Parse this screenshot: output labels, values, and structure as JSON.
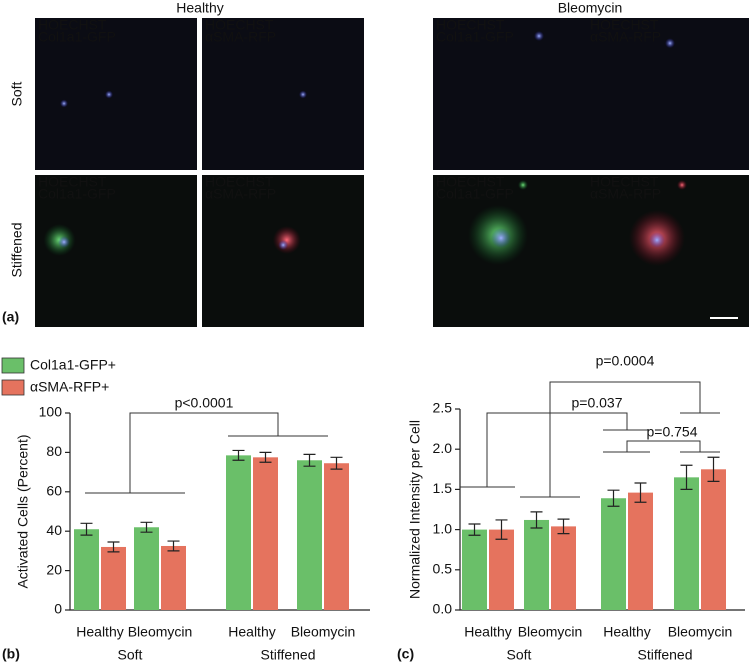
{
  "figure": {
    "panel_label": "(a)",
    "columns": [
      "Healthy",
      "Bleomycin"
    ],
    "rows": [
      "Soft",
      "Stiffened"
    ],
    "nucleus_stain": "HOECHST",
    "stains": [
      "Col1a1-GFP",
      "αSMA-RFP"
    ]
  },
  "chart_data": [
    {
      "type": "bar",
      "panel_label": "(b)",
      "ylabel": "Activated Cells (Percent)",
      "categories": [
        "Healthy",
        "Bleomycin",
        "Healthy",
        "Bleomycin"
      ],
      "group_labels": [
        "Soft",
        "Stiffened"
      ],
      "series": [
        {
          "name": "Col1a1-GFP+",
          "color": "#6abf69",
          "values": [
            41,
            42,
            78.5,
            76
          ],
          "errors": [
            3,
            2.5,
            2.5,
            3
          ]
        },
        {
          "name": "αSMA-RFP+",
          "color": "#e5735e",
          "values": [
            32,
            32.5,
            77.5,
            74.5
          ],
          "errors": [
            2.5,
            2.5,
            2.5,
            3
          ]
        }
      ],
      "ylim": [
        0,
        100
      ],
      "yticks": [
        0,
        20,
        40,
        60,
        80,
        100
      ],
      "legend": "top-left",
      "annotations": [
        "p<0.0001"
      ]
    },
    {
      "type": "bar",
      "panel_label": "(c)",
      "ylabel": "Normalized Intensity per Cell",
      "categories": [
        "Healthy",
        "Bleomycin",
        "Healthy",
        "Bleomycin"
      ],
      "group_labels": [
        "Soft",
        "Stiffened"
      ],
      "series": [
        {
          "color": "#6abf69",
          "values": [
            1.0,
            1.12,
            1.39,
            1.65
          ],
          "errors": [
            0.07,
            0.1,
            0.1,
            0.15
          ]
        },
        {
          "color": "#e5735e",
          "values": [
            1.0,
            1.04,
            1.46,
            1.75
          ],
          "errors": [
            0.12,
            0.09,
            0.12,
            0.15
          ]
        }
      ],
      "ylim": [
        0,
        2.5
      ],
      "yticks": [
        {
          "value": 0,
          "label": "0.0"
        },
        {
          "value": 0.5,
          "label": "0.5"
        },
        {
          "value": 1,
          "label": "1.0"
        },
        {
          "value": 1.5,
          "label": "1.5"
        },
        {
          "value": 2,
          "label": "2.0"
        },
        {
          "value": 2.5,
          "label": "2.5"
        }
      ],
      "annotations": [
        "p=0.037",
        "p=0.754",
        "p=0.0004"
      ]
    }
  ]
}
